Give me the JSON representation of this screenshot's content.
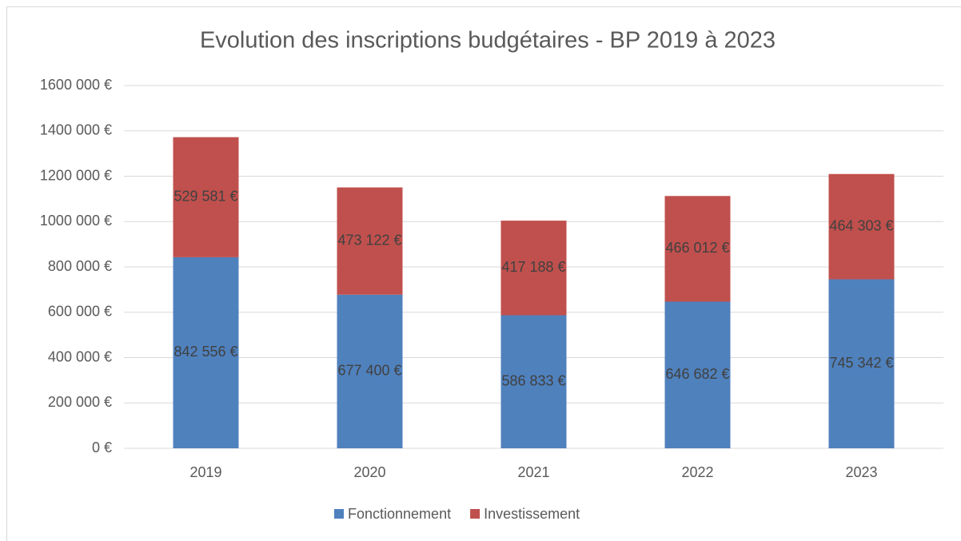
{
  "chart_data": {
    "type": "stacked_bar",
    "title": "Evolution des inscriptions budgétaires - BP 2019 à 2023",
    "categories": [
      "2019",
      "2020",
      "2021",
      "2022",
      "2023"
    ],
    "series": [
      {
        "name": "Fonctionnement",
        "color": "#4f81bd",
        "values": [
          842556,
          677400,
          586833,
          646682,
          745342
        ],
        "value_labels": [
          "842 556 €",
          "677 400 €",
          "586 833 €",
          "646 682 €",
          "745 342 €"
        ]
      },
      {
        "name": "Investissement",
        "color": "#c0504d",
        "values": [
          529581,
          473122,
          417188,
          466012,
          464303
        ],
        "value_labels": [
          "529 581 €",
          "473 122 €",
          "417 188 €",
          "466 012 €",
          "464 303 €"
        ]
      }
    ],
    "ylim": [
      0,
      1600000
    ],
    "yticks": [
      {
        "value": 0,
        "label": "0 €"
      },
      {
        "value": 200000,
        "label": "200 000 €"
      },
      {
        "value": 400000,
        "label": "400 000 €"
      },
      {
        "value": 600000,
        "label": "600 000 €"
      },
      {
        "value": 800000,
        "label": "800 000 €"
      },
      {
        "value": 1000000,
        "label": "1000 000 €"
      },
      {
        "value": 1200000,
        "label": "1200 000 €"
      },
      {
        "value": 1400000,
        "label": "1400 000 €"
      },
      {
        "value": 1600000,
        "label": "1600 000 €"
      }
    ],
    "grid": true,
    "legend": "bottom"
  }
}
